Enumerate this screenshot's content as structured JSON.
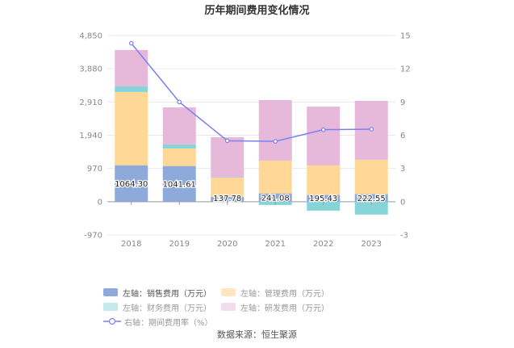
{
  "chart_data": {
    "type": "bar",
    "title": "历年期间费用变化情况",
    "categories": [
      "2018",
      "2019",
      "2020",
      "2021",
      "2022",
      "2023"
    ],
    "left_axis": {
      "ylim": [
        -970,
        4850
      ],
      "ticks": [
        "-970",
        "0",
        "970",
        "1,940",
        "2,910",
        "3,880",
        "4,850"
      ],
      "tick_values": [
        -970,
        0,
        970,
        1940,
        2910,
        3880,
        4850
      ]
    },
    "right_axis": {
      "ylim": [
        -3,
        15
      ],
      "ticks": [
        "-3",
        "0",
        "3",
        "6",
        "9",
        "12",
        "15"
      ],
      "tick_values": [
        -3,
        0,
        3,
        6,
        9,
        12,
        15
      ]
    },
    "grid": true,
    "legend_position": "bottom",
    "series": [
      {
        "name": "左轴：销售费用（万元）",
        "type": "bar",
        "axis": "left",
        "color": "#8eaadb",
        "values": [
          1064.3,
          1041.61,
          137.78,
          241.08,
          195.43,
          222.55
        ],
        "labels": [
          "1064.30",
          "1041.61",
          "137.78",
          "241.08",
          "195.43",
          "222.55"
        ]
      },
      {
        "name": "左轴：管理费用（万元）",
        "type": "bar",
        "axis": "left",
        "color": "#ffd898",
        "values": [
          2138,
          512,
          568,
          960,
          864,
          1002
        ]
      },
      {
        "name": "左轴：财务费用（万元）",
        "type": "bar",
        "axis": "left",
        "color": "#86d4d8",
        "values": [
          165,
          118,
          10,
          -95,
          -260,
          -375
        ]
      },
      {
        "name": "左轴：研发费用（万元）",
        "type": "bar",
        "axis": "left",
        "color": "#e6b8da",
        "values": [
          1059,
          1083,
          1168,
          1766,
          1718,
          1719
        ]
      },
      {
        "name": "右轴：期间费用率（%）",
        "type": "line",
        "axis": "right",
        "color": "#7b7ff0",
        "values": [
          14.3,
          9.0,
          5.5,
          5.45,
          6.5,
          6.55
        ]
      }
    ]
  },
  "legend": [
    {
      "label": "左轴：销售费用（万元）",
      "color": "#8eaadb",
      "kind": "rect"
    },
    {
      "label": "左轴：管理费用（万元）",
      "color": "#ffe6c2",
      "kind": "rect"
    },
    {
      "label": "左轴：财务费用（万元）",
      "color": "#c4e9eb",
      "kind": "rect"
    },
    {
      "label": "左轴：研发费用（万元）",
      "color": "#f4dcef",
      "kind": "rect"
    },
    {
      "label": "右轴：期间费用率（%）",
      "color": "#7b7ff0",
      "kind": "line"
    }
  ],
  "source": "数据来源：恒生聚源"
}
